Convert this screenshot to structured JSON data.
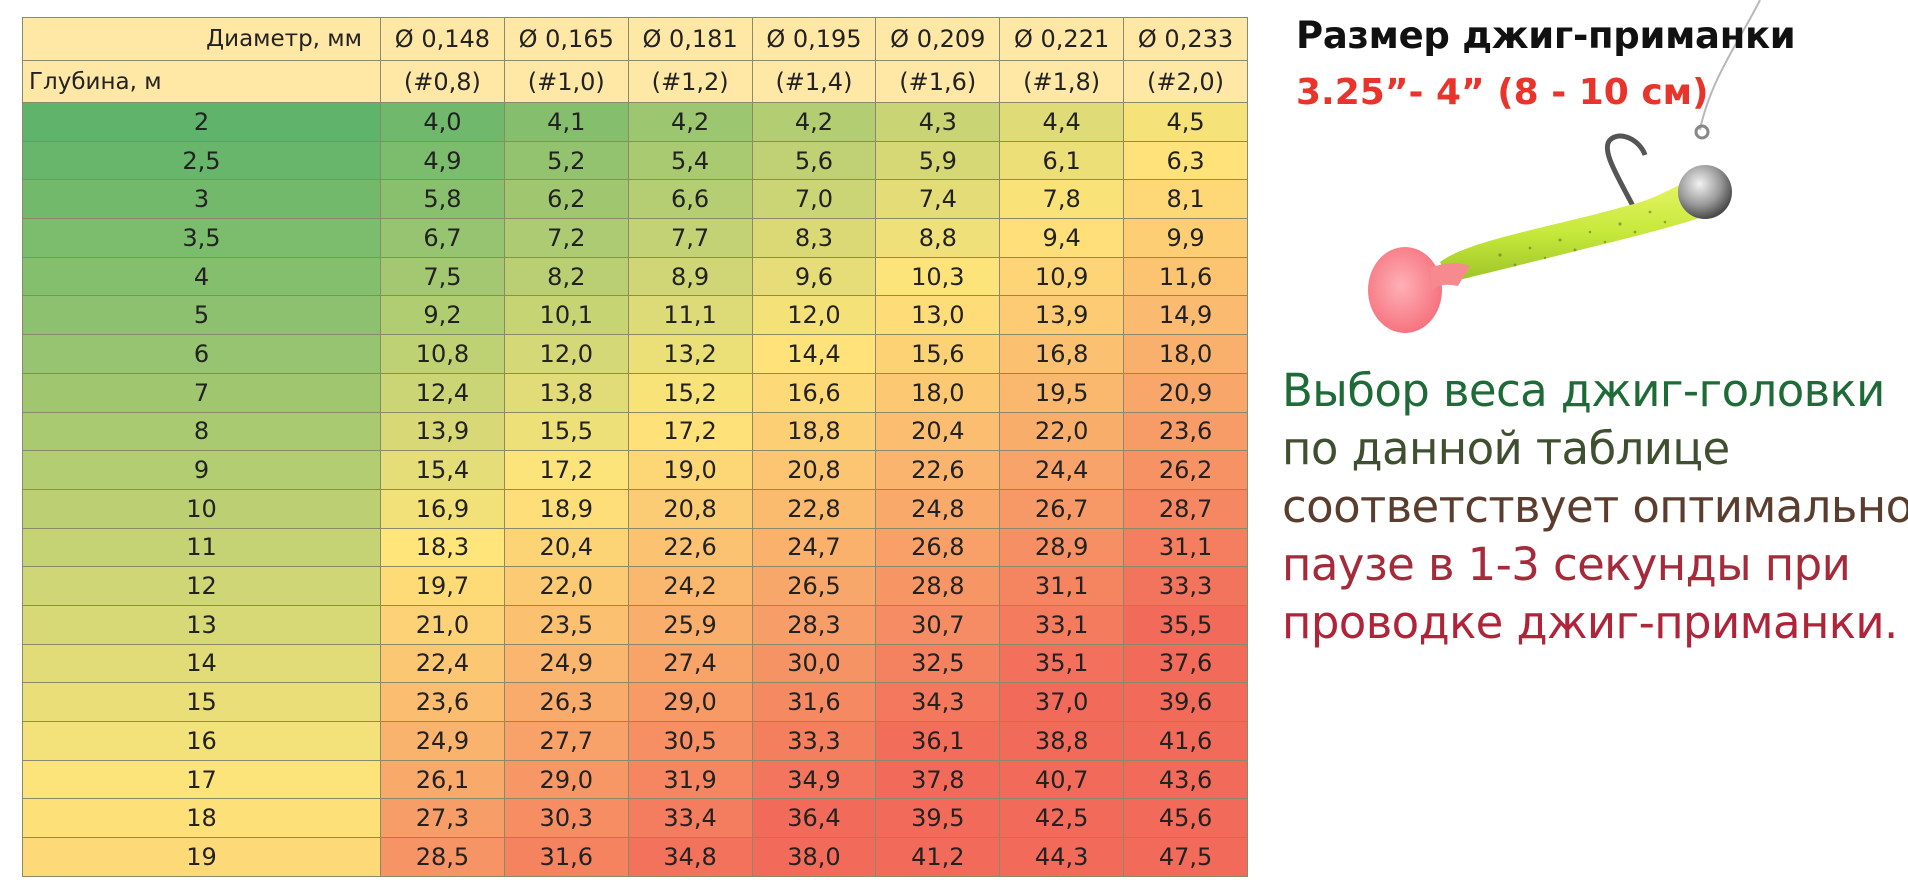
{
  "table": {
    "header": {
      "diameter_label": "Диаметр, мм",
      "depth_label": "Глубина, м",
      "columns": [
        {
          "diameter": "Ø 0,148",
          "size": "(#0,8)"
        },
        {
          "diameter": "Ø 0,165",
          "size": "(#1,0)"
        },
        {
          "diameter": "Ø 0,181",
          "size": "(#1,2)"
        },
        {
          "diameter": "Ø 0,195",
          "size": "(#1,4)"
        },
        {
          "diameter": "Ø 0,209",
          "size": "(#1,6)"
        },
        {
          "diameter": "Ø 0,221",
          "size": "(#1,8)"
        },
        {
          "diameter": "Ø 0,233",
          "size": "(#2,0)"
        }
      ]
    },
    "rows": [
      {
        "depth": "2",
        "values": [
          "4,0",
          "4,1",
          "4,2",
          "4,2",
          "4,3",
          "4,4",
          "4,5"
        ]
      },
      {
        "depth": "2,5",
        "values": [
          "4,9",
          "5,2",
          "5,4",
          "5,6",
          "5,9",
          "6,1",
          "6,3"
        ]
      },
      {
        "depth": "3",
        "values": [
          "5,8",
          "6,2",
          "6,6",
          "7,0",
          "7,4",
          "7,8",
          "8,1"
        ]
      },
      {
        "depth": "3,5",
        "values": [
          "6,7",
          "7,2",
          "7,7",
          "8,3",
          "8,8",
          "9,4",
          "9,9"
        ]
      },
      {
        "depth": "4",
        "values": [
          "7,5",
          "8,2",
          "8,9",
          "9,6",
          "10,3",
          "10,9",
          "11,6"
        ]
      },
      {
        "depth": "5",
        "values": [
          "9,2",
          "10,1",
          "11,1",
          "12,0",
          "13,0",
          "13,9",
          "14,9"
        ]
      },
      {
        "depth": "6",
        "values": [
          "10,8",
          "12,0",
          "13,2",
          "14,4",
          "15,6",
          "16,8",
          "18,0"
        ]
      },
      {
        "depth": "7",
        "values": [
          "12,4",
          "13,8",
          "15,2",
          "16,6",
          "18,0",
          "19,5",
          "20,9"
        ]
      },
      {
        "depth": "8",
        "values": [
          "13,9",
          "15,5",
          "17,2",
          "18,8",
          "20,4",
          "22,0",
          "23,6"
        ]
      },
      {
        "depth": "9",
        "values": [
          "15,4",
          "17,2",
          "19,0",
          "20,8",
          "22,6",
          "24,4",
          "26,2"
        ]
      },
      {
        "depth": "10",
        "values": [
          "16,9",
          "18,9",
          "20,8",
          "22,8",
          "24,8",
          "26,7",
          "28,7"
        ]
      },
      {
        "depth": "11",
        "values": [
          "18,3",
          "20,4",
          "22,6",
          "24,7",
          "26,8",
          "28,9",
          "31,1"
        ]
      },
      {
        "depth": "12",
        "values": [
          "19,7",
          "22,0",
          "24,2",
          "26,5",
          "28,8",
          "31,1",
          "33,3"
        ]
      },
      {
        "depth": "13",
        "values": [
          "21,0",
          "23,5",
          "25,9",
          "28,3",
          "30,7",
          "33,1",
          "35,5"
        ]
      },
      {
        "depth": "14",
        "values": [
          "22,4",
          "24,9",
          "27,4",
          "30,0",
          "32,5",
          "35,1",
          "37,6"
        ]
      },
      {
        "depth": "15",
        "values": [
          "23,6",
          "26,3",
          "29,0",
          "31,6",
          "34,3",
          "37,0",
          "39,6"
        ]
      },
      {
        "depth": "16",
        "values": [
          "24,9",
          "27,7",
          "30,5",
          "33,3",
          "36,1",
          "38,8",
          "41,6"
        ]
      },
      {
        "depth": "17",
        "values": [
          "26,1",
          "29,0",
          "31,9",
          "34,9",
          "37,8",
          "40,7",
          "43,6"
        ]
      },
      {
        "depth": "18",
        "values": [
          "27,3",
          "30,3",
          "33,4",
          "36,4",
          "39,5",
          "42,5",
          "45,6"
        ]
      },
      {
        "depth": "19",
        "values": [
          "28,5",
          "31,6",
          "34,8",
          "38,0",
          "41,2",
          "44,3",
          "47,5"
        ]
      }
    ]
  },
  "lure": {
    "title": "Размер джиг-приманки",
    "size": "3.25”- 4” (8 - 10 см)"
  },
  "description": {
    "lines": [
      {
        "text": "Выбор веса джиг-головки",
        "color": "#1e6b38"
      },
      {
        "text": "по данной таблице",
        "color": "#3f4f2f"
      },
      {
        "text": "соответствует оптимальной",
        "color": "#5b3d2e"
      },
      {
        "text": "паузе в 1-3 секунды при",
        "color": "#a52a3a"
      },
      {
        "text": "проводке джиг-приманки.",
        "color": "#b0243a"
      }
    ]
  },
  "colors": {
    "header_bg": "#ffe8a6",
    "heat_low": "#5fb36a",
    "heat_mid": "#ffe57a",
    "heat_high": "#f26b5a"
  }
}
